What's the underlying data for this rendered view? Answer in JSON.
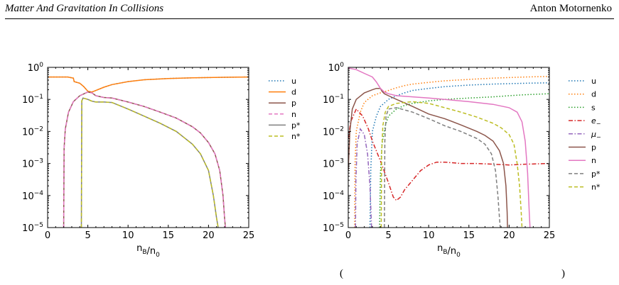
{
  "header": {
    "title": "Matter And Gravitation In Collisions",
    "author": "Anton Motornenko"
  },
  "caption_fragments": {
    "left": "(",
    "right": ")"
  },
  "colors": {
    "blue": "#1f77b4",
    "orange": "#ff7f0e",
    "green": "#2ca02c",
    "red": "#d62728",
    "purple": "#9467bd",
    "brown": "#8c564b",
    "pink": "#e377c2",
    "gray": "#7f7f7f",
    "olive": "#bcbd22"
  },
  "chart_data": [
    {
      "type": "line",
      "title": "",
      "xlabel": "n_B/n_0",
      "ylabel": "",
      "xlim": [
        0,
        25
      ],
      "ylim": [
        1e-05,
        1
      ],
      "yscale": "log",
      "grid": false,
      "legend_position": "right",
      "x_ticks": [
        0,
        5,
        10,
        15,
        20,
        25
      ],
      "y_ticks": [
        {
          "exp": 0,
          "label": "10"
        },
        {
          "exp": -1,
          "label": "10"
        },
        {
          "exp": -2,
          "label": "10"
        },
        {
          "exp": -3,
          "label": "10"
        },
        {
          "exp": -4,
          "label": "10"
        },
        {
          "exp": -5,
          "label": "10"
        }
      ],
      "y_tick_exponents": [
        "0",
        "−1",
        "−2",
        "−3",
        "−4",
        "−5"
      ],
      "series": [
        {
          "name": "u",
          "color": "#1f77b4",
          "dash": "dotted",
          "x": [
            0,
            2.5,
            3.2,
            3.3,
            4.0,
            4.5,
            5.0,
            5.5,
            6,
            7,
            8,
            10,
            12,
            15,
            18,
            20,
            22,
            25
          ],
          "y": [
            0.5,
            0.5,
            0.46,
            0.36,
            0.32,
            0.25,
            0.18,
            0.17,
            0.19,
            0.24,
            0.29,
            0.36,
            0.41,
            0.45,
            0.47,
            0.48,
            0.49,
            0.5
          ]
        },
        {
          "name": "d",
          "color": "#ff7f0e",
          "dash": "solid",
          "x": [
            0,
            2.5,
            3.2,
            3.3,
            4.0,
            4.5,
            5.0,
            5.5,
            6,
            7,
            8,
            10,
            12,
            15,
            18,
            20,
            22,
            25
          ],
          "y": [
            0.5,
            0.5,
            0.46,
            0.36,
            0.32,
            0.25,
            0.18,
            0.17,
            0.19,
            0.24,
            0.29,
            0.36,
            0.41,
            0.45,
            0.47,
            0.48,
            0.49,
            0.5
          ]
        },
        {
          "name": "p",
          "color": "#8c564b",
          "dash": "solid",
          "x": [
            2.0,
            2.05,
            2.2,
            2.6,
            3.2,
            4.0,
            5.0,
            5.5,
            6,
            7,
            8,
            10,
            12,
            14,
            16,
            18,
            19,
            20,
            20.8,
            21.4,
            21.8,
            22.0,
            22.1
          ],
          "y": [
            1e-05,
            0.003,
            0.012,
            0.04,
            0.085,
            0.13,
            0.17,
            0.16,
            0.13,
            0.115,
            0.11,
            0.083,
            0.06,
            0.04,
            0.026,
            0.014,
            0.009,
            0.0045,
            0.002,
            0.0006,
            0.0001,
            2e-05,
            1e-05
          ]
        },
        {
          "name": "n",
          "color": "#e377c2",
          "dash": "dashed",
          "x": [
            2.0,
            2.05,
            2.2,
            2.6,
            3.2,
            4.0,
            5.0,
            5.5,
            6,
            7,
            8,
            10,
            12,
            14,
            16,
            18,
            19,
            20,
            20.8,
            21.4,
            21.8,
            22.0,
            22.1
          ],
          "y": [
            1e-05,
            0.003,
            0.012,
            0.04,
            0.085,
            0.13,
            0.17,
            0.16,
            0.13,
            0.115,
            0.11,
            0.083,
            0.06,
            0.04,
            0.026,
            0.014,
            0.009,
            0.0045,
            0.002,
            0.0006,
            0.0001,
            2e-05,
            1e-05
          ]
        },
        {
          "name": "p*",
          "color": "#7f7f7f",
          "dash": "solid",
          "x": [
            4.2,
            4.25,
            4.4,
            5.0,
            5.5,
            6,
            7,
            8,
            10,
            12,
            14,
            16,
            18,
            19,
            20,
            20.6,
            21.0,
            21.2
          ],
          "y": [
            1e-05,
            0.09,
            0.11,
            0.1,
            0.088,
            0.083,
            0.083,
            0.08,
            0.05,
            0.03,
            0.018,
            0.01,
            0.004,
            0.002,
            0.0006,
            0.0001,
            2e-05,
            1e-05
          ]
        },
        {
          "name": "n*",
          "color": "#bcbd22",
          "dash": "dashed",
          "x": [
            4.2,
            4.25,
            4.4,
            5.0,
            5.5,
            6,
            7,
            8,
            10,
            12,
            14,
            16,
            18,
            19,
            20,
            20.6,
            21.0,
            21.2
          ],
          "y": [
            1e-05,
            0.09,
            0.11,
            0.1,
            0.088,
            0.083,
            0.083,
            0.08,
            0.05,
            0.03,
            0.018,
            0.01,
            0.004,
            0.002,
            0.0006,
            0.0001,
            2e-05,
            1e-05
          ]
        }
      ]
    },
    {
      "type": "line",
      "title": "",
      "xlabel": "n_B/n_0",
      "ylabel": "",
      "xlim": [
        0,
        25
      ],
      "ylim": [
        1e-05,
        1
      ],
      "yscale": "log",
      "grid": false,
      "legend_position": "right",
      "x_ticks": [
        0,
        5,
        10,
        15,
        20,
        25
      ],
      "y_ticks": [
        {
          "exp": 0,
          "label": "10"
        },
        {
          "exp": -1,
          "label": "10"
        },
        {
          "exp": -2,
          "label": "10"
        },
        {
          "exp": -3,
          "label": "10"
        },
        {
          "exp": -4,
          "label": "10"
        },
        {
          "exp": -5,
          "label": "10"
        }
      ],
      "y_tick_exponents": [
        "0",
        "−1",
        "−2",
        "−3",
        "−4",
        "−5"
      ],
      "series": [
        {
          "name": "u",
          "color": "#1f77b4",
          "dash": "dotted",
          "x": [
            2.7,
            2.8,
            3.0,
            3.5,
            4.0,
            5.0,
            6,
            7,
            8,
            10,
            12,
            15,
            18,
            20,
            22,
            25
          ],
          "y": [
            1e-05,
            0.0006,
            0.01,
            0.03,
            0.06,
            0.1,
            0.13,
            0.16,
            0.19,
            0.22,
            0.25,
            0.28,
            0.3,
            0.31,
            0.32,
            0.33
          ]
        },
        {
          "name": "d",
          "color": "#ff7f0e",
          "dash": "dotted",
          "x": [
            0.8,
            0.85,
            1.0,
            1.5,
            2.0,
            3.0,
            4.0,
            5.0,
            6,
            7,
            8,
            10,
            12,
            15,
            18,
            20,
            22,
            25
          ],
          "y": [
            1e-05,
            0.001,
            0.01,
            0.04,
            0.08,
            0.13,
            0.16,
            0.19,
            0.23,
            0.27,
            0.3,
            0.34,
            0.38,
            0.42,
            0.46,
            0.48,
            0.5,
            0.52
          ]
        },
        {
          "name": "s",
          "color": "#2ca02c",
          "dash": "dotted",
          "x": [
            3.9,
            4.0,
            4.2,
            4.6,
            5.0,
            6,
            7,
            8,
            10,
            12,
            15,
            18,
            20,
            22,
            25
          ],
          "y": [
            1e-05,
            0.0005,
            0.004,
            0.015,
            0.03,
            0.05,
            0.065,
            0.075,
            0.09,
            0.1,
            0.11,
            0.12,
            0.13,
            0.14,
            0.15
          ]
        },
        {
          "name": "e_−",
          "color": "#d62728",
          "dash": "dashdot",
          "x": [
            0,
            0.3,
            1.0,
            1.8,
            2.5,
            3.0,
            4.0,
            5.0,
            5.6,
            6.0,
            6.5,
            7.0,
            8.0,
            9.0,
            10.0,
            11.0,
            12,
            14,
            16,
            18,
            20,
            22,
            25
          ],
          "y": [
            0.006,
            0.02,
            0.05,
            0.03,
            0.012,
            0.005,
            0.0012,
            0.00025,
            9e-05,
            7e-05,
            9e-05,
            0.00015,
            0.0003,
            0.0006,
            0.0009,
            0.0011,
            0.0011,
            0.001,
            0.001,
            0.00095,
            0.0009,
            0.00095,
            0.001
          ]
        },
        {
          "name": "μ_−",
          "color": "#9467bd",
          "dash": "dashdot",
          "x": [
            0.9,
            0.95,
            1.1,
            1.5,
            2.0,
            2.4,
            2.7,
            2.85,
            2.9
          ],
          "y": [
            1e-05,
            0.0003,
            0.004,
            0.012,
            0.008,
            0.002,
            0.0002,
            2e-05,
            1e-05
          ]
        },
        {
          "name": "p",
          "color": "#8c564b",
          "dash": "solid",
          "x": [
            0,
            0.2,
            0.5,
            1.0,
            2.0,
            3.0,
            3.5,
            4.0,
            4.2,
            4.5,
            5.0,
            6,
            8,
            10,
            12,
            14,
            16,
            17,
            18,
            18.8,
            19.3,
            19.6,
            19.75,
            19.8
          ],
          "y": [
            0.0006,
            0.01,
            0.05,
            0.1,
            0.16,
            0.2,
            0.22,
            0.22,
            0.18,
            0.15,
            0.13,
            0.1,
            0.06,
            0.035,
            0.025,
            0.016,
            0.01,
            0.0075,
            0.005,
            0.0025,
            0.001,
            0.0002,
            3e-05,
            1e-05
          ]
        },
        {
          "name": "n",
          "color": "#e377c2",
          "dash": "solid",
          "x": [
            0,
            1,
            2,
            3,
            3.5,
            4.0,
            4.5,
            5,
            6,
            8,
            10,
            12,
            15,
            18,
            20,
            21,
            21.6,
            22.0,
            22.3,
            22.5,
            22.6
          ],
          "y": [
            0.95,
            0.85,
            0.65,
            0.5,
            0.35,
            0.22,
            0.17,
            0.15,
            0.13,
            0.12,
            0.11,
            0.1,
            0.085,
            0.07,
            0.055,
            0.04,
            0.02,
            0.005,
            0.0005,
            3e-05,
            1e-05
          ]
        },
        {
          "name": "p*",
          "color": "#7f7f7f",
          "dash": "dashed",
          "x": [
            4.5,
            4.55,
            4.7,
            5.0,
            6,
            8,
            10,
            12,
            14,
            16,
            17,
            17.8,
            18.3,
            18.6,
            18.8,
            18.9
          ],
          "y": [
            1e-05,
            0.005,
            0.03,
            0.05,
            0.055,
            0.04,
            0.025,
            0.015,
            0.01,
            0.006,
            0.004,
            0.002,
            0.0006,
            0.0001,
            2e-05,
            1e-05
          ]
        },
        {
          "name": "n*",
          "color": "#bcbd22",
          "dash": "dashed",
          "x": [
            4.1,
            4.15,
            4.3,
            4.6,
            5.0,
            6,
            8,
            10,
            12,
            14,
            16,
            18,
            19,
            20,
            20.6,
            21.0,
            21.3,
            21.5,
            21.6
          ],
          "y": [
            1e-05,
            0.002,
            0.015,
            0.04,
            0.06,
            0.075,
            0.085,
            0.075,
            0.055,
            0.04,
            0.028,
            0.018,
            0.013,
            0.008,
            0.004,
            0.001,
            0.0002,
            3e-05,
            1e-05
          ]
        }
      ]
    }
  ]
}
